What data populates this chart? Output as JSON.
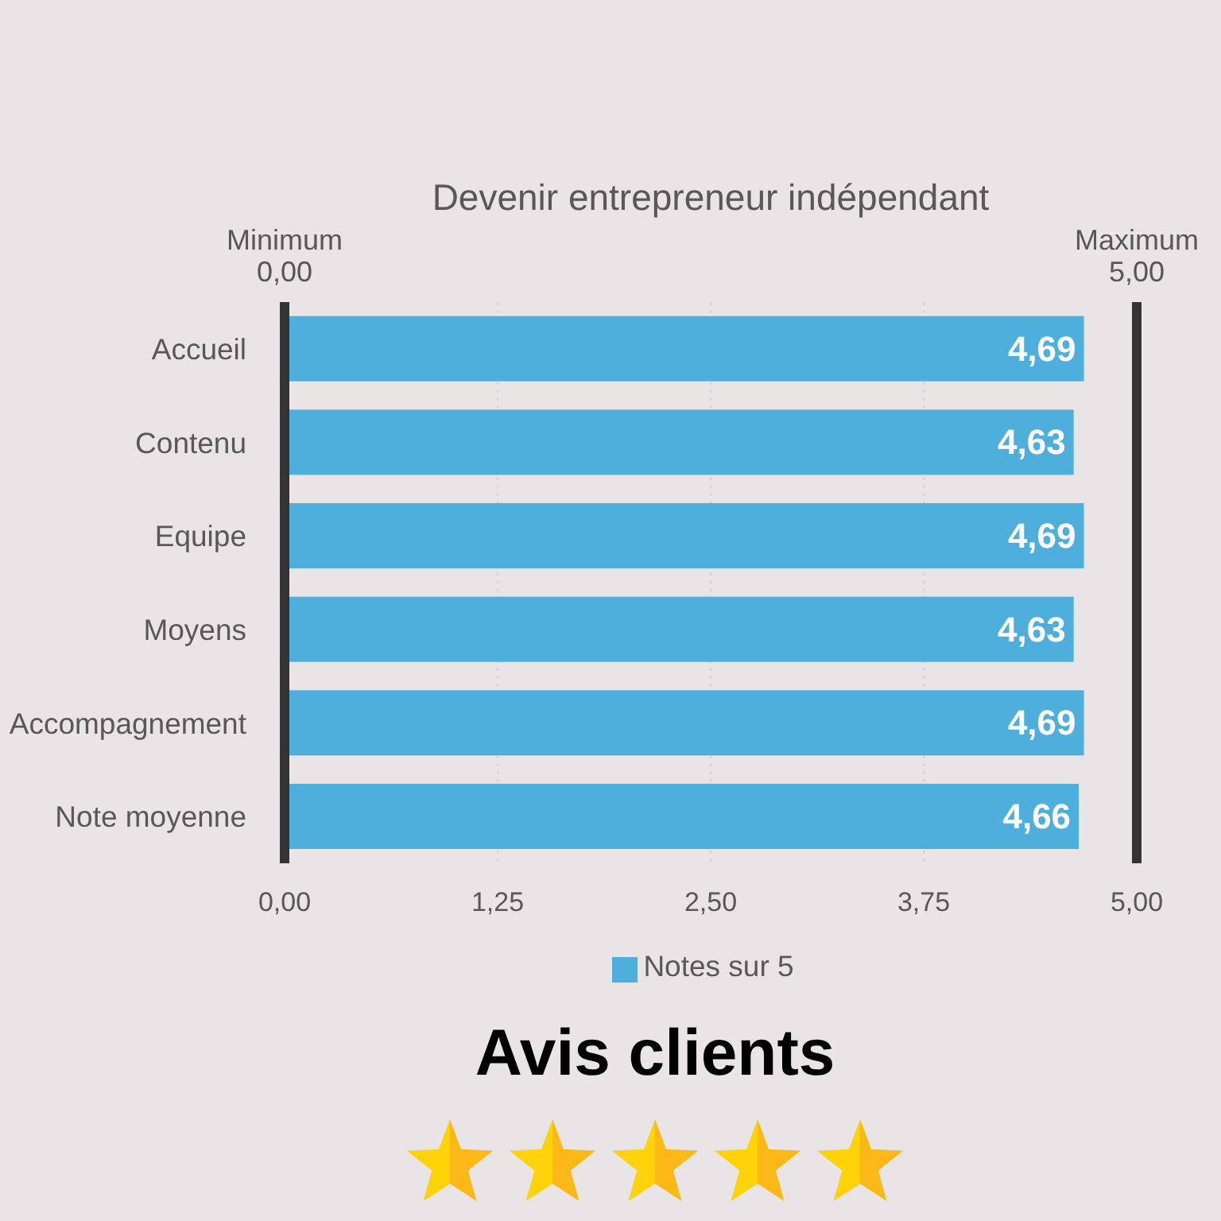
{
  "chart_data": {
    "type": "bar",
    "orientation": "horizontal",
    "title": "Devenir entrepreneur indépendant",
    "categories": [
      "Accueil",
      "Contenu",
      "Equipe",
      "Moyens",
      "Accompagnement",
      "Note moyenne"
    ],
    "series": [
      {
        "name": "Notes sur 5",
        "color": "#4fafdc",
        "values": [
          4.69,
          4.63,
          4.69,
          4.63,
          4.69,
          4.66
        ],
        "value_labels": [
          "4,69",
          "4,63",
          "4,69",
          "4,63",
          "4,69",
          "4,66"
        ]
      }
    ],
    "xlim": [
      0,
      5
    ],
    "xticks": [
      {
        "value": 0,
        "label": "0,00"
      },
      {
        "value": 1.25,
        "label": "1,25"
      },
      {
        "value": 2.5,
        "label": "2,50"
      },
      {
        "value": 3.75,
        "label": "3,75"
      },
      {
        "value": 5,
        "label": "5,00"
      }
    ],
    "ref_lines": [
      {
        "axis": "x",
        "value": 5,
        "label": "Maximum\n5,00",
        "color": "#333333"
      }
    ],
    "grid": "x",
    "legend": "bottom",
    "annotations": [
      "Minimum\n0,00",
      "Avis clients"
    ]
  }
}
